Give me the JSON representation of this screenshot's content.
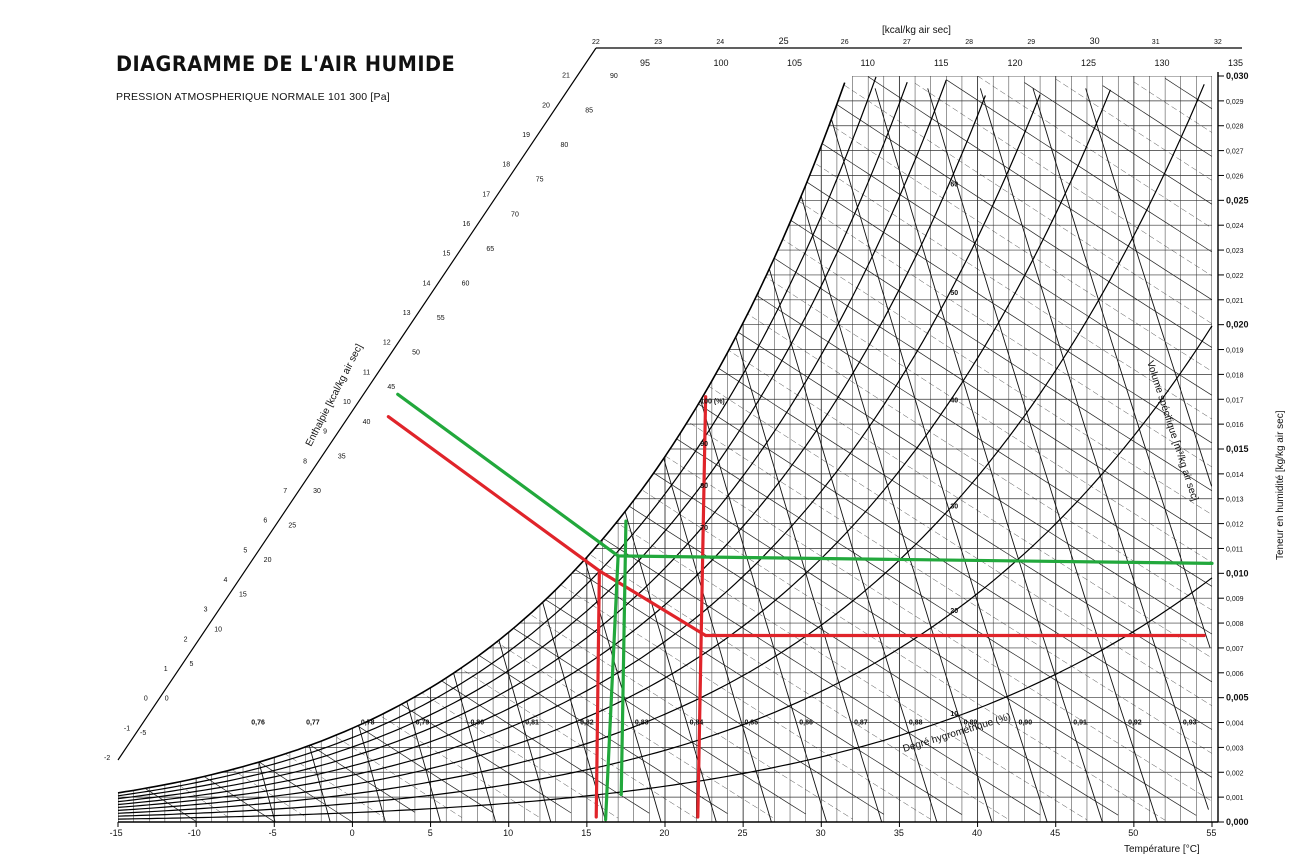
{
  "title": "DIAGRAMME DE L'AIR HUMIDE",
  "subtitle": "PRESSION ATMOSPHERIQUE NORMALE  101 300 [Pa]",
  "top_unit": "[kcal/kg air sec]",
  "enthalpy_unit": "Enthalpie [kcal/kg air sec]",
  "right_axis_label": "Teneur en humidité  [kg/kg air sec]",
  "bottom_axis_label": "Température  [°C]",
  "rh_label": "Degré hygrométrique (%)",
  "sv_label": "Volume spécifique [m³/kg air sec]",
  "chart_data": {
    "type": "line",
    "x_axis": {
      "label": "Température [°C]",
      "range": [
        -15,
        55
      ],
      "ticks": [
        "-15",
        "-10",
        "-5",
        "0",
        "5",
        "10",
        "15",
        "20",
        "25",
        "30",
        "35",
        "40",
        "45",
        "50",
        "55"
      ]
    },
    "y_axis": {
      "label": "Teneur en humidité [kg/kg air sec]",
      "range": [
        0,
        0.03
      ],
      "ticks": [
        "0,000",
        "0,001",
        "0,002",
        "0,003",
        "0,004",
        "0,005",
        "0,006",
        "0,007",
        "0,008",
        "0,009",
        "0,010",
        "0,011",
        "0,012",
        "0,013",
        "0,014",
        "0,015",
        "0,016",
        "0,017",
        "0,018",
        "0,019",
        "0,020",
        "0,021",
        "0,022",
        "0,023",
        "0,024",
        "0,025",
        "0,026",
        "0,027",
        "0,028",
        "0,029",
        "0,030"
      ]
    },
    "enthalpy_kcal_ticks": [
      "-2",
      "-1",
      "0",
      "1",
      "2",
      "3",
      "4",
      "5",
      "6",
      "7",
      "8",
      "9",
      "10",
      "11",
      "12",
      "13",
      "14",
      "15",
      "16",
      "17",
      "18",
      "19",
      "20",
      "21",
      "22",
      "23",
      "24",
      "25",
      "26",
      "27",
      "28",
      "29",
      "30",
      "31",
      "32"
    ],
    "enthalpy_kJ_ticks": [
      "-5",
      "0",
      "5",
      "10",
      "15",
      "20",
      "25",
      "30",
      "35",
      "40",
      "45",
      "50",
      "55",
      "60",
      "65",
      "70",
      "75",
      "80",
      "85",
      "90",
      "95",
      "100",
      "105",
      "110",
      "115",
      "120",
      "125",
      "130",
      "135"
    ],
    "relative_humidity_curves_pct": [
      10,
      20,
      30,
      40,
      50,
      60,
      70,
      80,
      90,
      100
    ],
    "rh_curve_labels": [
      "10",
      "20",
      "30",
      "40",
      "50",
      "60",
      "70",
      "80",
      "90",
      "100 (%)"
    ],
    "specific_volume_lines": [
      0.76,
      0.77,
      0.78,
      0.79,
      0.8,
      0.81,
      0.82,
      0.83,
      0.84,
      0.85,
      0.86,
      0.87,
      0.88,
      0.89,
      0.9,
      0.91,
      0.92,
      0.93,
      0.94,
      0.95
    ],
    "sv_labels": [
      "0,76",
      "0,77",
      "0,78",
      "0,79",
      "0,80",
      "0,81",
      "0,82",
      "0,83",
      "0,84",
      "0,85",
      "0,86",
      "0,87",
      "0,88",
      "0,89",
      "0,90",
      "0,91",
      "0,92",
      "0,93",
      "0,94",
      "0,95"
    ],
    "overlay_red": {
      "color": "#e0242a",
      "segments": [
        {
          "from": {
            "x": 2.3,
            "y": 0.0163
          },
          "to": {
            "x": 15.8,
            "y": 0.0101
          }
        },
        {
          "from": {
            "x": 15.8,
            "y": 0.0101
          },
          "to": {
            "x": 22.6,
            "y": 0.0075
          }
        },
        {
          "from": {
            "x": 22.6,
            "y": 0.0075
          },
          "to": {
            "x": 54.5,
            "y": 0.0075
          }
        },
        {
          "from": {
            "x": 15.8,
            "y": 0.0101
          },
          "to": {
            "x": 15.6,
            "y": 0.0002
          }
        },
        {
          "from": {
            "x": 22.6,
            "y": 0.0171
          },
          "to": {
            "x": 22.1,
            "y": 0.0002
          }
        }
      ]
    },
    "overlay_green": {
      "color": "#22a83c",
      "segments": [
        {
          "from": {
            "x": 2.9,
            "y": 0.0172
          },
          "to": {
            "x": 17.0,
            "y": 0.0107
          }
        },
        {
          "from": {
            "x": 17.0,
            "y": 0.0107
          },
          "to": {
            "x": 55.0,
            "y": 0.0104
          }
        },
        {
          "from": {
            "x": 17.0,
            "y": 0.0107
          },
          "to": {
            "x": 16.2,
            "y": 0.0001
          }
        },
        {
          "from": {
            "x": 17.5,
            "y": 0.0121
          },
          "to": {
            "x": 17.2,
            "y": 0.0011
          }
        }
      ]
    }
  }
}
